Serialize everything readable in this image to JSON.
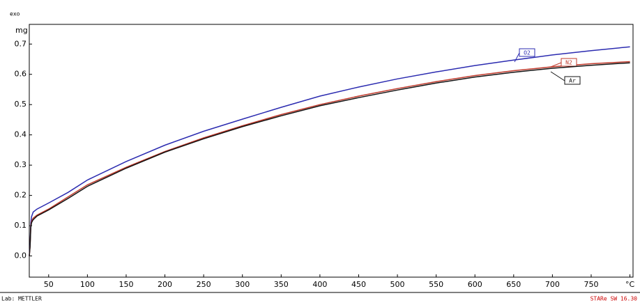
{
  "chart_data": {
    "type": "line",
    "y_label": "mg",
    "exo_label": "exo",
    "footer_left": "Lab: METTLER",
    "footer_right": "STARe SW 16.30",
    "xlim": [
      25,
      804
    ],
    "ylim": [
      -0.07,
      0.765
    ],
    "xticks": [
      50,
      100,
      150,
      200,
      250,
      300,
      350,
      400,
      450,
      500,
      550,
      600,
      650,
      700,
      750,
      {
        "value": 800,
        "label": "°C"
      }
    ],
    "yticks": [
      {
        "value": 0,
        "label": "0.0"
      },
      0.1,
      0.2,
      0.3,
      0.4,
      0.5,
      0.6,
      0.7
    ],
    "x": [
      25,
      26,
      27,
      28,
      30,
      35,
      50,
      75,
      100,
      150,
      200,
      250,
      300,
      350,
      400,
      450,
      500,
      550,
      600,
      650,
      700,
      750,
      800
    ],
    "series": [
      {
        "name": "O2",
        "color": "#2b2bb0",
        "values": [
          0,
          0.04,
          0.11,
          0.13,
          0.145,
          0.155,
          0.175,
          0.21,
          0.251,
          0.312,
          0.366,
          0.412,
          0.452,
          0.491,
          0.528,
          0.558,
          0.585,
          0.608,
          0.629,
          0.647,
          0.664,
          0.678,
          0.691
        ]
      },
      {
        "name": "N2",
        "color": "#c0392b",
        "values": [
          0,
          0.03,
          0.1,
          0.115,
          0.125,
          0.135,
          0.155,
          0.195,
          0.235,
          0.293,
          0.345,
          0.39,
          0.43,
          0.467,
          0.5,
          0.528,
          0.553,
          0.576,
          0.596,
          0.612,
          0.625,
          0.635,
          0.642
        ]
      },
      {
        "name": "Ar",
        "color": "#111111",
        "values": [
          0,
          0.03,
          0.095,
          0.11,
          0.12,
          0.132,
          0.152,
          0.19,
          0.23,
          0.29,
          0.343,
          0.387,
          0.427,
          0.463,
          0.496,
          0.523,
          0.548,
          0.571,
          0.591,
          0.607,
          0.62,
          0.63,
          0.638
        ]
      }
    ]
  }
}
